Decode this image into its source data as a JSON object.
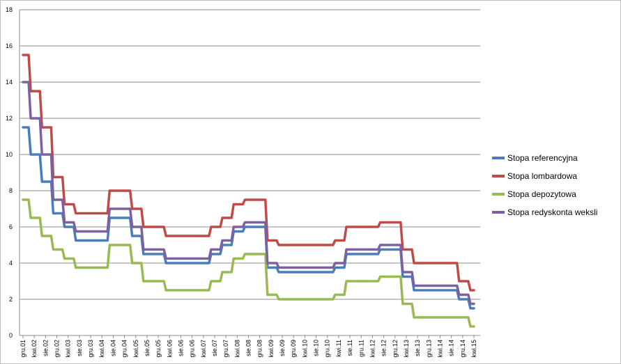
{
  "chart_data": {
    "type": "line",
    "title": "",
    "xlabel": "",
    "ylabel": "",
    "ylim": [
      0,
      18
    ],
    "yticks": [
      0,
      2,
      4,
      6,
      8,
      10,
      12,
      14,
      16,
      18
    ],
    "grid": "horizontal",
    "legend_position": "right",
    "x_tick_labels": [
      "gru.01",
      "kwi.02",
      "sie.02",
      "gru.02",
      "kwi.03",
      "sie.03",
      "gru.03",
      "kwi.04",
      "sie.04",
      "gru.04",
      "kwi.05",
      "sie.05",
      "gru.05",
      "kwi.06",
      "sie.06",
      "gru.06",
      "kwi.07",
      "sie.07",
      "gru.07",
      "kwi.08",
      "sie.08",
      "gru.08",
      "kwi.09",
      "sie.09",
      "gru.09",
      "kwi.10",
      "sie.10",
      "gru.10",
      "kwi.11",
      "sie.11",
      "gru.11",
      "kwi.12",
      "sie.12",
      "gru.12",
      "kwi.13",
      "sie.13",
      "gru.13",
      "kwi.14",
      "sie.14",
      "gru.14",
      "kwi.15"
    ],
    "series": [
      {
        "name": "Stopa referencyjna",
        "color": "#4a7ebb",
        "values": [
          11.5,
          10,
          8.5,
          6.75,
          6,
          5.25,
          5.25,
          5.25,
          6.5,
          6.5,
          5.5,
          4.5,
          4.5,
          4,
          4,
          4,
          4,
          4.5,
          5,
          5.75,
          6,
          6,
          3.75,
          3.5,
          3.5,
          3.5,
          3.5,
          3.5,
          3.75,
          4.5,
          4.5,
          4.5,
          4.75,
          4.75,
          3.25,
          2.5,
          2.5,
          2.5,
          2.5,
          2,
          1.5
        ]
      },
      {
        "name": "Stopa lombardowa",
        "color": "#be4b48",
        "values": [
          15.5,
          13.5,
          11.5,
          8.75,
          7.25,
          6.75,
          6.75,
          6.75,
          8,
          8,
          7,
          6,
          6,
          5.5,
          5.5,
          5.5,
          5.5,
          6,
          6.5,
          7.25,
          7.5,
          7.5,
          5.25,
          5,
          5,
          5,
          5,
          5,
          5.25,
          6,
          6,
          6,
          6.25,
          6.25,
          4.75,
          4,
          4,
          4,
          4,
          3,
          2.5
        ]
      },
      {
        "name": "Stopa depozytowa",
        "color": "#98b954",
        "values": [
          7.5,
          6.5,
          5.5,
          4.75,
          4.25,
          3.75,
          3.75,
          3.75,
          5,
          5,
          4,
          3,
          3,
          2.5,
          2.5,
          2.5,
          2.5,
          3,
          3.5,
          4.25,
          4.5,
          4.5,
          2.25,
          2,
          2,
          2,
          2,
          2,
          2.25,
          3,
          3,
          3,
          3.25,
          3.25,
          1.75,
          1,
          1,
          1,
          1,
          1,
          0.5
        ]
      },
      {
        "name": "Stopa redyskonta weksli",
        "color": "#7d60a0",
        "values": [
          14,
          12,
          10,
          7.5,
          6.25,
          5.75,
          5.75,
          5.75,
          7,
          7,
          6,
          4.75,
          4.75,
          4.25,
          4.25,
          4.25,
          4.25,
          4.75,
          5.25,
          6,
          6.25,
          6.25,
          4,
          3.75,
          3.75,
          3.75,
          3.75,
          3.75,
          4,
          4.75,
          4.75,
          4.75,
          5,
          5,
          3.5,
          2.75,
          2.75,
          2.75,
          2.75,
          2.25,
          1.75
        ]
      }
    ]
  }
}
